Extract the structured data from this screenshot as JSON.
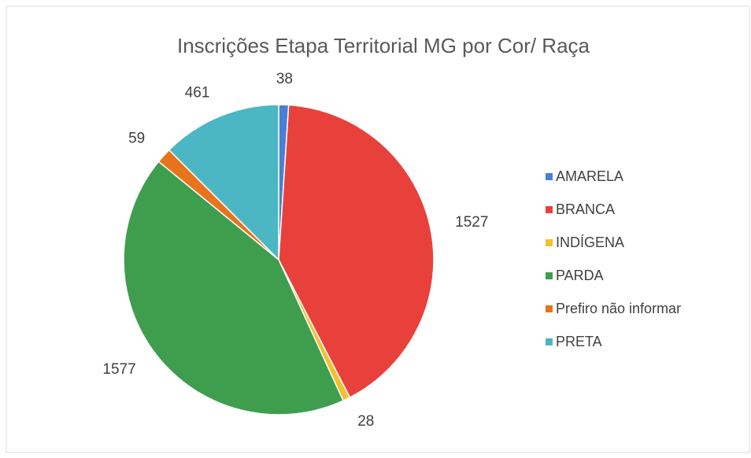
{
  "chart_data": {
    "type": "pie",
    "title": "Inscrições Etapa Territorial MG por Cor/ Raça",
    "categories": [
      "AMARELA",
      "BRANCA",
      "INDÍGENA",
      "PARDA",
      "Prefiro não informar",
      "PRETA"
    ],
    "values": [
      38,
      1527,
      28,
      1577,
      59,
      461
    ],
    "colors": [
      "#4a7fd4",
      "#e8413c",
      "#f2c12e",
      "#3f9e4d",
      "#e8731c",
      "#4bb6c4"
    ],
    "legend": "right"
  }
}
